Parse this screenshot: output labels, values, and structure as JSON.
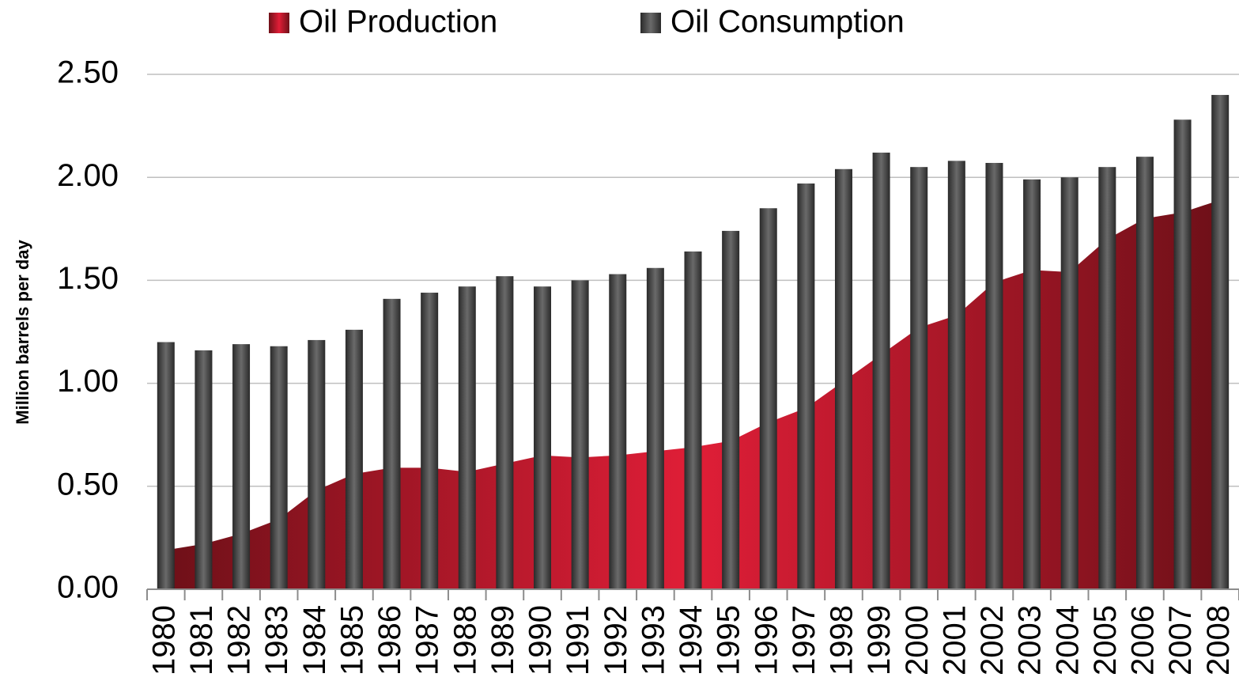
{
  "chart_data": {
    "type": "bar",
    "y_label": "Million barrels per day",
    "categories": [
      "1980",
      "1981",
      "1982",
      "1983",
      "1984",
      "1985",
      "1986",
      "1987",
      "1988",
      "1989",
      "1990",
      "1991",
      "1992",
      "1993",
      "1994",
      "1995",
      "1996",
      "1997",
      "1998",
      "1999",
      "2000",
      "2001",
      "2002",
      "2003",
      "2004",
      "2005",
      "2006",
      "2007",
      "2008"
    ],
    "series": [
      {
        "name": "Oil Production",
        "type": "area",
        "color": "#e01e37",
        "values": [
          0.19,
          0.22,
          0.27,
          0.34,
          0.48,
          0.56,
          0.59,
          0.59,
          0.57,
          0.61,
          0.65,
          0.64,
          0.65,
          0.67,
          0.69,
          0.72,
          0.81,
          0.88,
          1.01,
          1.14,
          1.27,
          1.33,
          1.49,
          1.55,
          1.54,
          1.7,
          1.8,
          1.83,
          1.89
        ]
      },
      {
        "name": "Oil Consumption",
        "type": "bar",
        "color": "#6a6a6a",
        "values": [
          1.2,
          1.16,
          1.19,
          1.18,
          1.21,
          1.26,
          1.41,
          1.44,
          1.47,
          1.52,
          1.47,
          1.5,
          1.53,
          1.56,
          1.64,
          1.74,
          1.85,
          1.97,
          2.04,
          2.12,
          2.05,
          2.08,
          2.07,
          1.99,
          2.0,
          2.05,
          2.1,
          2.28,
          2.4
        ]
      }
    ],
    "ylim": [
      0,
      2.5
    ],
    "yticks": [
      {
        "value": 0,
        "label": "0.00"
      },
      {
        "value": 0.5,
        "label": "0.50"
      },
      {
        "value": 1,
        "label": "1.00"
      },
      {
        "value": 1.5,
        "label": "1.50"
      },
      {
        "value": 2,
        "label": "2.00"
      },
      {
        "value": 2.5,
        "label": "2.50"
      }
    ],
    "grid": true,
    "legend": "top"
  }
}
